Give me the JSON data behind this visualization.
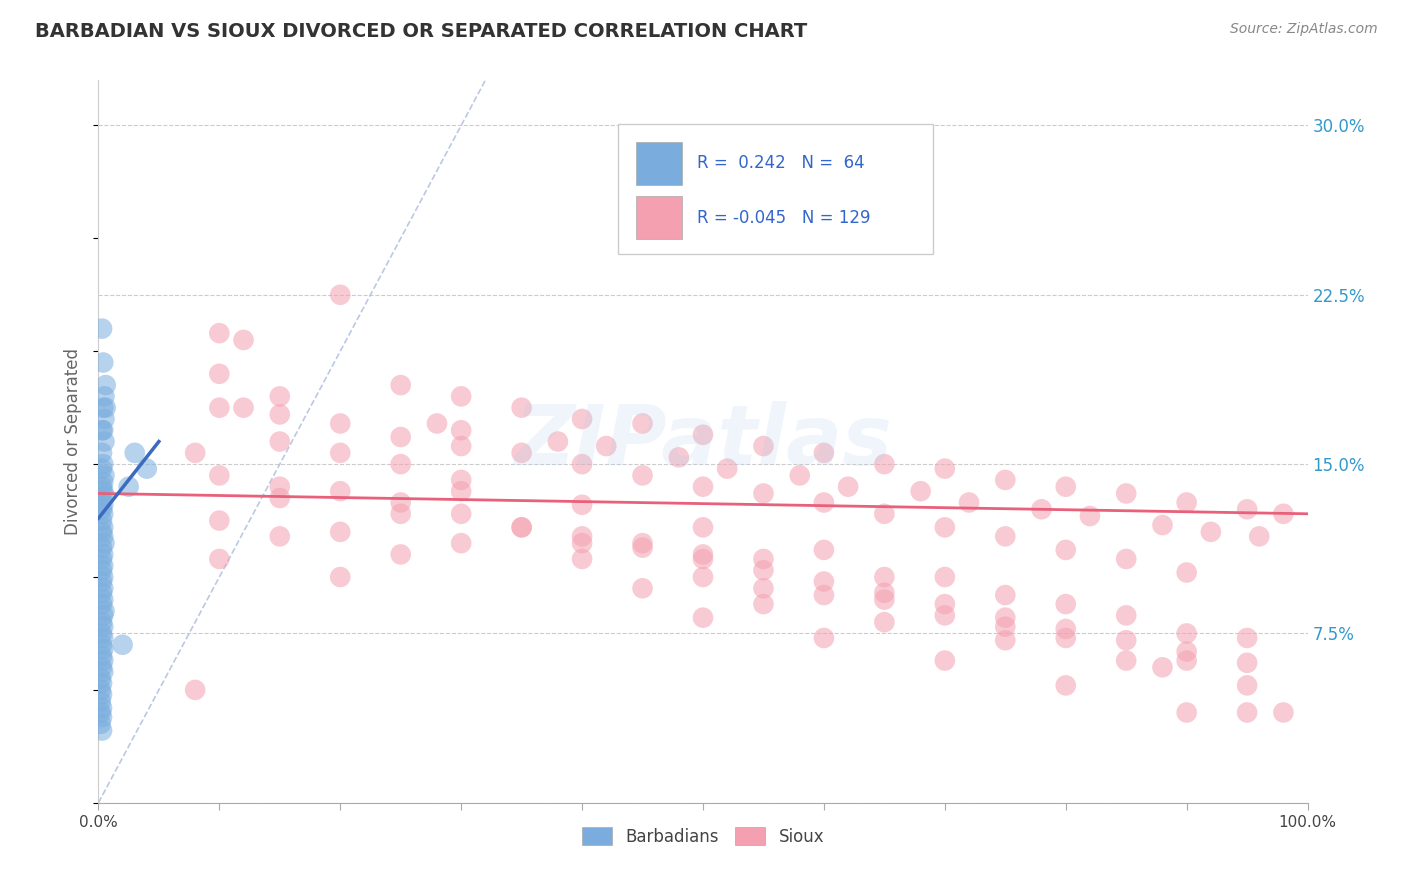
{
  "title": "BARBADIAN VS SIOUX DIVORCED OR SEPARATED CORRELATION CHART",
  "source_text": "Source: ZipAtlas.com",
  "ylabel": "Divorced or Separated",
  "watermark": "ZIPatlas",
  "legend_blue_r": "0.242",
  "legend_blue_n": "64",
  "legend_pink_r": "-0.045",
  "legend_pink_n": "129",
  "xlim": [
    0.0,
    1.0
  ],
  "ylim": [
    0.0,
    0.32
  ],
  "ytick_right_positions": [
    0.0,
    0.075,
    0.15,
    0.225,
    0.3
  ],
  "ytick_right_labels": [
    "",
    "7.5%",
    "15.0%",
    "22.5%",
    "30.0%"
  ],
  "grid_color": "#cccccc",
  "background_color": "#ffffff",
  "blue_color": "#7aadde",
  "pink_color": "#f4a0b0",
  "blue_line_color": "#3a6bbf",
  "pink_line_color": "#e8607a",
  "diag_line_color": "#aabbdd",
  "blue_scatter_x": [
    0.003,
    0.004,
    0.005,
    0.005,
    0.006,
    0.004,
    0.003,
    0.005,
    0.006,
    0.004,
    0.003,
    0.004,
    0.003,
    0.005,
    0.004,
    0.003,
    0.004,
    0.005,
    0.003,
    0.004,
    0.003,
    0.004,
    0.003,
    0.004,
    0.003,
    0.004,
    0.005,
    0.003,
    0.004,
    0.003,
    0.004,
    0.003,
    0.004,
    0.003,
    0.004,
    0.003,
    0.004,
    0.003,
    0.005,
    0.004,
    0.003,
    0.004,
    0.003,
    0.004,
    0.003,
    0.004,
    0.003,
    0.004,
    0.003,
    0.004,
    0.002,
    0.003,
    0.002,
    0.003,
    0.002,
    0.003,
    0.002,
    0.003,
    0.002,
    0.003,
    0.03,
    0.04,
    0.025,
    0.02
  ],
  "blue_scatter_y": [
    0.21,
    0.195,
    0.18,
    0.17,
    0.185,
    0.175,
    0.165,
    0.16,
    0.175,
    0.165,
    0.155,
    0.15,
    0.148,
    0.145,
    0.142,
    0.14,
    0.138,
    0.136,
    0.134,
    0.132,
    0.13,
    0.128,
    0.125,
    0.122,
    0.12,
    0.118,
    0.115,
    0.113,
    0.11,
    0.108,
    0.105,
    0.103,
    0.1,
    0.098,
    0.095,
    0.093,
    0.09,
    0.088,
    0.085,
    0.083,
    0.08,
    0.078,
    0.075,
    0.073,
    0.07,
    0.068,
    0.065,
    0.063,
    0.06,
    0.058,
    0.055,
    0.053,
    0.05,
    0.048,
    0.045,
    0.042,
    0.04,
    0.038,
    0.035,
    0.032,
    0.155,
    0.148,
    0.14,
    0.07
  ],
  "pink_scatter_x": [
    0.08,
    0.1,
    0.12,
    0.15,
    0.2,
    0.1,
    0.25,
    0.12,
    0.3,
    0.28,
    0.35,
    0.3,
    0.4,
    0.38,
    0.45,
    0.42,
    0.5,
    0.48,
    0.55,
    0.52,
    0.6,
    0.58,
    0.65,
    0.62,
    0.7,
    0.68,
    0.75,
    0.72,
    0.8,
    0.78,
    0.85,
    0.82,
    0.9,
    0.88,
    0.95,
    0.92,
    0.98,
    0.96,
    0.1,
    0.15,
    0.2,
    0.25,
    0.3,
    0.35,
    0.4,
    0.45,
    0.5,
    0.55,
    0.6,
    0.65,
    0.7,
    0.75,
    0.8,
    0.85,
    0.9,
    0.1,
    0.15,
    0.2,
    0.25,
    0.3,
    0.35,
    0.4,
    0.45,
    0.5,
    0.55,
    0.6,
    0.65,
    0.7,
    0.75,
    0.8,
    0.85,
    0.9,
    0.95,
    0.15,
    0.2,
    0.25,
    0.3,
    0.4,
    0.5,
    0.6,
    0.7,
    0.8,
    0.9,
    0.15,
    0.25,
    0.35,
    0.45,
    0.55,
    0.65,
    0.75,
    0.85,
    0.95,
    0.1,
    0.2,
    0.3,
    0.4,
    0.5,
    0.6,
    0.7,
    0.8,
    0.9,
    0.15,
    0.25,
    0.45,
    0.55,
    0.65,
    0.75,
    0.85,
    0.95,
    0.98,
    0.1,
    0.2,
    0.5,
    0.6,
    0.7,
    0.8,
    0.9,
    0.4,
    0.55,
    0.08,
    0.3,
    0.5,
    0.65,
    0.75,
    0.88,
    0.95
  ],
  "pink_scatter_y": [
    0.155,
    0.208,
    0.205,
    0.18,
    0.225,
    0.19,
    0.185,
    0.175,
    0.18,
    0.168,
    0.175,
    0.165,
    0.17,
    0.16,
    0.168,
    0.158,
    0.163,
    0.153,
    0.158,
    0.148,
    0.155,
    0.145,
    0.15,
    0.14,
    0.148,
    0.138,
    0.143,
    0.133,
    0.14,
    0.13,
    0.137,
    0.127,
    0.133,
    0.123,
    0.13,
    0.12,
    0.128,
    0.118,
    0.175,
    0.172,
    0.168,
    0.162,
    0.158,
    0.155,
    0.15,
    0.145,
    0.14,
    0.137,
    0.133,
    0.128,
    0.122,
    0.118,
    0.112,
    0.108,
    0.102,
    0.145,
    0.14,
    0.138,
    0.133,
    0.128,
    0.122,
    0.118,
    0.113,
    0.108,
    0.103,
    0.098,
    0.093,
    0.088,
    0.082,
    0.077,
    0.072,
    0.067,
    0.062,
    0.16,
    0.155,
    0.15,
    0.143,
    0.132,
    0.122,
    0.112,
    0.1,
    0.088,
    0.075,
    0.135,
    0.128,
    0.122,
    0.115,
    0.108,
    0.1,
    0.092,
    0.083,
    0.073,
    0.125,
    0.12,
    0.115,
    0.108,
    0.1,
    0.092,
    0.083,
    0.073,
    0.063,
    0.118,
    0.11,
    0.095,
    0.088,
    0.08,
    0.072,
    0.063,
    0.052,
    0.04,
    0.108,
    0.1,
    0.082,
    0.073,
    0.063,
    0.052,
    0.04,
    0.115,
    0.095,
    0.05,
    0.138,
    0.11,
    0.09,
    0.078,
    0.06,
    0.04
  ],
  "blue_trend_x": [
    0.0,
    0.05
  ],
  "blue_trend_y": [
    0.126,
    0.16
  ],
  "pink_trend_x": [
    0.0,
    1.0
  ],
  "pink_trend_y": [
    0.137,
    0.128
  ]
}
